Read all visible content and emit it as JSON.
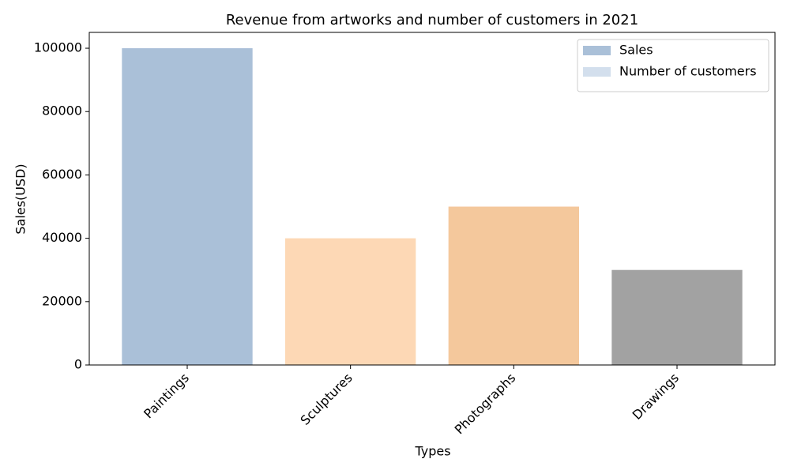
{
  "chart_data": {
    "type": "bar",
    "title": "Revenue from artworks and number of customers in 2021",
    "x_label": "Types",
    "y_label": "Sales(USD)",
    "categories": [
      "Paintings",
      "Sculptures",
      "Photographs",
      "Drawings"
    ],
    "series": [
      {
        "name": "Sales",
        "color": "#aac0d8",
        "values": [
          100000,
          40000,
          50000,
          30000
        ],
        "bar_colors": [
          "#aac0d8",
          "#fdd8b5",
          "#f4c89c",
          "#a2a2a2"
        ]
      }
    ],
    "legend": [
      {
        "name": "Sales",
        "color": "#aac0d8"
      },
      {
        "name": "Number of customers",
        "color": "#d3dfed"
      }
    ],
    "legend_position": "upper right",
    "ylim": [
      0,
      105000
    ],
    "yticks": [
      0,
      20000,
      40000,
      60000,
      80000,
      100000
    ],
    "grid": false
  }
}
